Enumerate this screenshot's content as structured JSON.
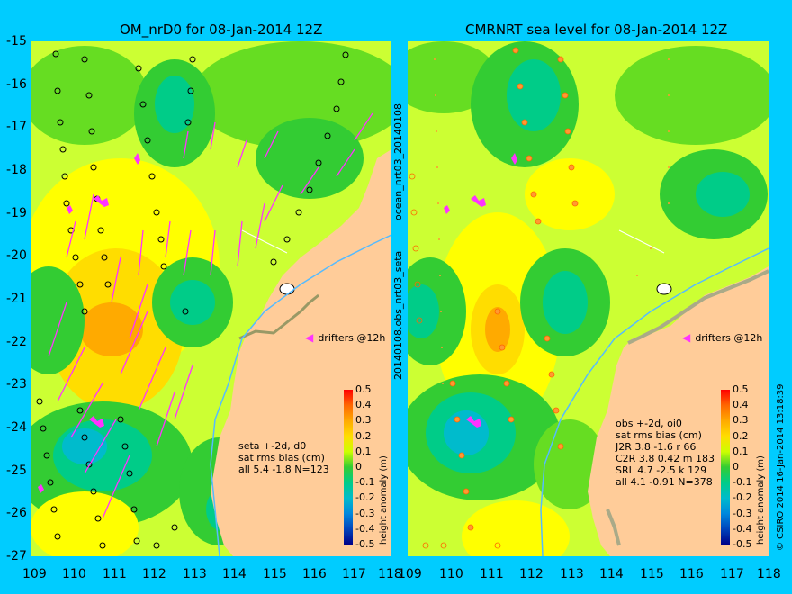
{
  "left_panel": {
    "title": "OM_nrD0 for 08-Jan-2014 12Z",
    "drifters_label": "drifters @12h",
    "stats": {
      "line1": "seta +-2d, d0",
      "line2": "sat rms bias (cm)",
      "line3": "all 5.4 -1.8 N=123"
    }
  },
  "right_panel": {
    "title": "CMRNRT sea level  for 08-Jan-2014 12Z",
    "drifters_label": "drifters @12h",
    "stats": {
      "line1": "obs +-2d, oi0",
      "line2": "sat rms bias (cm)",
      "line3": "J2R   3.8 -1.6 r 66",
      "line4": "C2R   3.8 0.42 m 183",
      "line5": "SRL   4.7 -2.5 k 129",
      "line6": "all   4.1 -0.91 N=378"
    }
  },
  "side_labels": {
    "file_upper": "ocean_nrt03_20140108",
    "file_lower": "20140108.obs_nrt03_seta",
    "credit": "© CSIRO 2014  16-Jan-2014 13:18:39"
  },
  "colorbar": {
    "label": "height anomaly (m)",
    "ticks": [
      "0.5",
      "0.4",
      "0.3",
      "0.2",
      "0.1",
      "0",
      "-0.1",
      "-0.2",
      "-0.3",
      "-0.4",
      "-0.5"
    ],
    "colors": [
      "#ff0000",
      "#ff6600",
      "#ffaa00",
      "#ffdd00",
      "#ccff00",
      "#33cc33",
      "#00cc88",
      "#00bbcc",
      "#0088dd",
      "#0044bb",
      "#000088"
    ]
  },
  "axes": {
    "y_ticks": [
      "-15",
      "-16",
      "-17",
      "-18",
      "-19",
      "-20",
      "-21",
      "-22",
      "-23",
      "-24",
      "-25",
      "-26",
      "-27"
    ],
    "x_ticks": [
      "109",
      "110",
      "111",
      "112",
      "113",
      "114",
      "115",
      "116",
      "117",
      "118"
    ]
  },
  "colors": {
    "land": "#ffcc99",
    "background": "#00ccff",
    "drifter": "#ff33ff",
    "coast_shade": "#aaaa88"
  }
}
